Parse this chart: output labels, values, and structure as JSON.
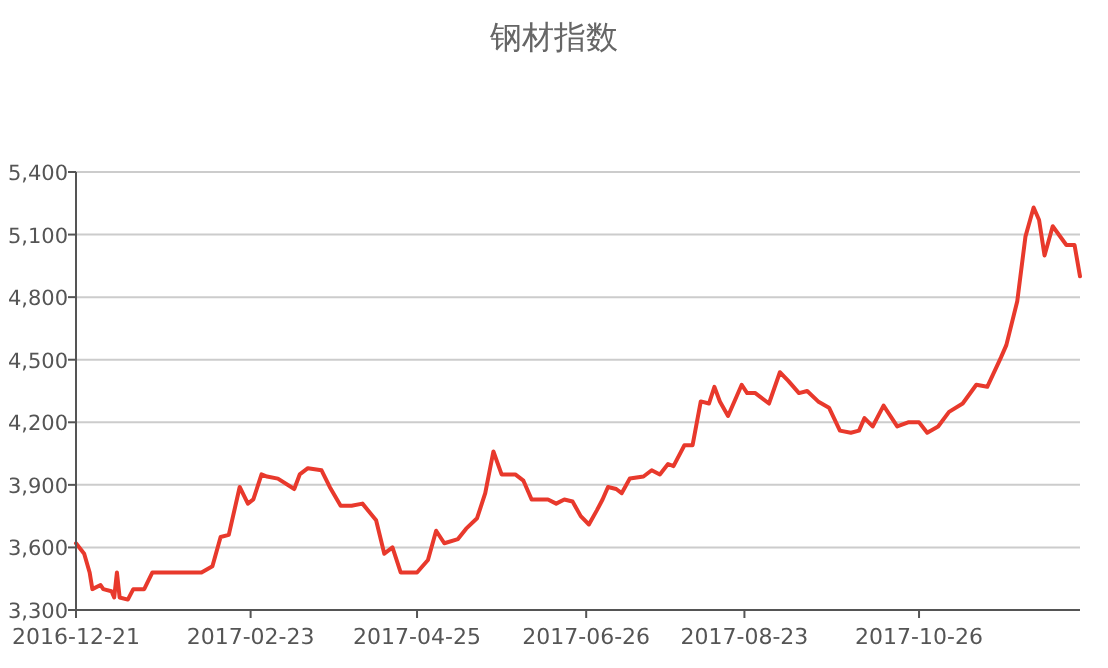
{
  "chart_data": {
    "type": "line",
    "title": "钢材指数",
    "x": [
      "2016-12-21",
      "2016-12-24",
      "2016-12-26",
      "2016-12-27",
      "2016-12-30",
      "2016-12-31",
      "2017-01-03",
      "2017-01-04",
      "2017-01-05",
      "2017-01-06",
      "2017-01-09",
      "2017-01-11",
      "2017-01-15",
      "2017-01-18",
      "2017-02-05",
      "2017-02-09",
      "2017-02-12",
      "2017-02-15",
      "2017-02-19",
      "2017-02-22",
      "2017-02-24",
      "2017-02-27",
      "2017-03-01",
      "2017-03-05",
      "2017-03-11",
      "2017-03-13",
      "2017-03-16",
      "2017-03-21",
      "2017-03-24",
      "2017-03-28",
      "2017-04-01",
      "2017-04-05",
      "2017-04-10",
      "2017-04-13",
      "2017-04-16",
      "2017-04-19",
      "2017-04-22",
      "2017-04-25",
      "2017-04-29",
      "2017-05-02",
      "2017-05-05",
      "2017-05-10",
      "2017-05-13",
      "2017-05-17",
      "2017-05-20",
      "2017-05-23",
      "2017-05-26",
      "2017-05-31",
      "2017-06-03",
      "2017-06-06",
      "2017-06-12",
      "2017-06-15",
      "2017-06-18",
      "2017-06-21",
      "2017-06-24",
      "2017-06-27",
      "2017-06-30",
      "2017-07-02",
      "2017-07-04",
      "2017-07-07",
      "2017-07-09",
      "2017-07-12",
      "2017-07-17",
      "2017-07-20",
      "2017-07-23",
      "2017-07-26",
      "2017-07-28",
      "2017-08-01",
      "2017-08-04",
      "2017-08-07",
      "2017-08-10",
      "2017-08-12",
      "2017-08-14",
      "2017-08-17",
      "2017-08-20",
      "2017-08-22",
      "2017-08-24",
      "2017-08-27",
      "2017-09-01",
      "2017-09-05",
      "2017-09-08",
      "2017-09-12",
      "2017-09-15",
      "2017-09-19",
      "2017-09-23",
      "2017-09-27",
      "2017-10-01",
      "2017-10-04",
      "2017-10-06",
      "2017-10-09",
      "2017-10-13",
      "2017-10-18",
      "2017-10-22",
      "2017-10-26",
      "2017-10-29",
      "2017-11-02",
      "2017-11-06",
      "2017-11-11",
      "2017-11-16",
      "2017-11-20",
      "2017-11-25",
      "2017-11-27",
      "2017-12-01",
      "2017-12-04",
      "2017-12-07",
      "2017-12-09",
      "2017-12-11",
      "2017-12-14",
      "2017-12-19",
      "2017-12-22",
      "2017-12-24"
    ],
    "series": [
      {
        "color": "#e8392c",
        "values": [
          3620,
          3570,
          3480,
          3400,
          3420,
          3400,
          3390,
          3360,
          3480,
          3360,
          3350,
          3400,
          3400,
          3480,
          3480,
          3510,
          3650,
          3660,
          3890,
          3810,
          3830,
          3950,
          3940,
          3930,
          3880,
          3950,
          3980,
          3970,
          3890,
          3800,
          3800,
          3810,
          3730,
          3570,
          3600,
          3480,
          3480,
          3480,
          3540,
          3680,
          3620,
          3640,
          3690,
          3740,
          3860,
          4060,
          3950,
          3950,
          3920,
          3830,
          3830,
          3810,
          3830,
          3820,
          3750,
          3710,
          3780,
          3830,
          3890,
          3880,
          3860,
          3930,
          3940,
          3970,
          3950,
          4000,
          3990,
          4090,
          4090,
          4300,
          4290,
          4370,
          4300,
          4230,
          4320,
          4380,
          4340,
          4340,
          4290,
          4440,
          4400,
          4340,
          4350,
          4300,
          4270,
          4160,
          4150,
          4160,
          4220,
          4180,
          4280,
          4180,
          4200,
          4200,
          4150,
          4180,
          4250,
          4290,
          4380,
          4370,
          4510,
          4570,
          4780,
          5090,
          5230,
          5170,
          5000,
          5140,
          5050,
          5050,
          4900
        ]
      }
    ],
    "xlim": [
      "2016-12-21",
      "2017-12-24"
    ],
    "xticks": [
      "2016-12-21",
      "2017-02-23",
      "2017-04-25",
      "2017-06-26",
      "2017-08-23",
      "2017-10-26"
    ],
    "ylim": [
      3300,
      5400
    ],
    "yticks": [
      {
        "value": 3300,
        "label": "3,300"
      },
      {
        "value": 3600,
        "label": "3,600"
      },
      {
        "value": 3900,
        "label": "3,900"
      },
      {
        "value": 4200,
        "label": "4,200"
      },
      {
        "value": 4500,
        "label": "4,500"
      },
      {
        "value": 4800,
        "label": "4,800"
      },
      {
        "value": 5100,
        "label": "5,100"
      },
      {
        "value": 5400,
        "label": "5,400"
      }
    ],
    "grid": "y",
    "marker": "none",
    "line_style": "solid"
  }
}
